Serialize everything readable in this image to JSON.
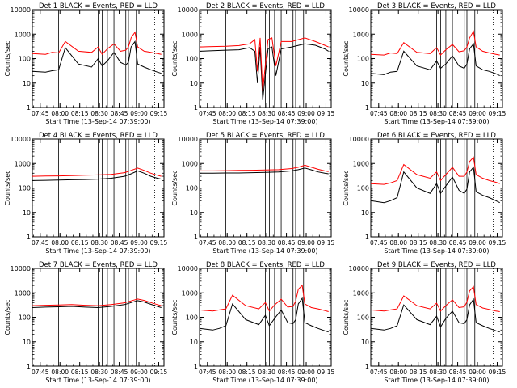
{
  "figure": {
    "start_time_label": "Start Time (13-Sep-14 07:39:00)",
    "ylabel": "Counts/sec",
    "x_tick_labels": [
      "07:45",
      "08:00",
      "08:15",
      "08:30",
      "08:45",
      "09:00",
      "09:15"
    ],
    "y_tick_labels": [
      "1",
      "10",
      "100",
      "1000",
      "10000"
    ],
    "colors": {
      "events": "#000000",
      "lld": "#ff0000",
      "axes": "#000000"
    }
  },
  "chart_data": [
    {
      "type": "line",
      "title": "Det 1  BLACK = Events, RED = LLD",
      "xlabel": "Start Time (13-Sep-14 07:39:00)",
      "ylabel": "Counts/sec",
      "y_scale": "log",
      "ylim": [
        1,
        10000
      ],
      "x_unit": "minutes after 07:39",
      "xlim": [
        0,
        100
      ],
      "grid": false,
      "vertical_markers": [
        20,
        50,
        53,
        57,
        62,
        71,
        73,
        79
      ],
      "dotted_markers": [
        93
      ],
      "series": [
        {
          "name": "Events",
          "color": "#000000",
          "x": [
            0,
            10,
            15,
            20,
            25,
            35,
            45,
            50,
            53,
            57,
            62,
            67,
            71,
            73,
            75,
            78,
            80,
            85,
            90,
            95,
            98
          ],
          "y": [
            30,
            28,
            32,
            35,
            280,
            60,
            45,
            100,
            50,
            80,
            180,
            70,
            55,
            70,
            300,
            500,
            60,
            45,
            35,
            28,
            25
          ]
        },
        {
          "name": "LLD",
          "color": "#ff0000",
          "x": [
            0,
            10,
            15,
            20,
            25,
            35,
            45,
            50,
            53,
            57,
            62,
            67,
            71,
            73,
            75,
            78,
            80,
            85,
            90,
            95,
            98
          ],
          "y": [
            160,
            150,
            180,
            170,
            500,
            200,
            180,
            300,
            150,
            250,
            400,
            200,
            220,
            300,
            700,
            1200,
            300,
            200,
            180,
            160,
            150
          ]
        }
      ]
    },
    {
      "type": "line",
      "title": "Det 2  BLACK = Events, RED = LLD",
      "xlabel": "Start Time (13-Sep-14 07:39:00)",
      "ylabel": "Counts/sec",
      "y_scale": "log",
      "ylim": [
        1,
        10000
      ],
      "x_unit": "minutes after 07:39",
      "xlim": [
        0,
        100
      ],
      "grid": false,
      "vertical_markers": [
        20,
        50,
        53,
        57,
        62,
        71,
        73,
        79
      ],
      "dotted_markers": [
        93
      ],
      "series": [
        {
          "name": "Events",
          "color": "#000000",
          "x": [
            0,
            10,
            20,
            30,
            38,
            42,
            44,
            46,
            48,
            52,
            55,
            58,
            62,
            70,
            80,
            88,
            95,
            98
          ],
          "y": [
            200,
            210,
            220,
            230,
            280,
            200,
            10,
            300,
            2,
            250,
            300,
            20,
            250,
            300,
            400,
            350,
            250,
            200
          ]
        },
        {
          "name": "LLD",
          "color": "#ff0000",
          "x": [
            0,
            10,
            20,
            30,
            38,
            42,
            44,
            46,
            48,
            52,
            55,
            58,
            62,
            70,
            80,
            88,
            95,
            98
          ],
          "y": [
            300,
            310,
            320,
            340,
            400,
            600,
            30,
            700,
            5,
            600,
            700,
            50,
            500,
            500,
            700,
            500,
            350,
            300
          ]
        }
      ]
    },
    {
      "type": "line",
      "title": "Det 3  BLACK = Events, RED = LLD",
      "xlabel": "Start Time (13-Sep-14 07:39:00)",
      "ylabel": "Counts/sec",
      "y_scale": "log",
      "ylim": [
        1,
        10000
      ],
      "x_unit": "minutes after 07:39",
      "xlim": [
        0,
        100
      ],
      "grid": false,
      "vertical_markers": [
        20,
        50,
        53,
        57,
        62,
        71,
        73,
        79
      ],
      "dotted_markers": [
        93
      ],
      "series": [
        {
          "name": "Events",
          "color": "#000000",
          "x": [
            0,
            10,
            15,
            20,
            25,
            35,
            45,
            50,
            53,
            57,
            62,
            67,
            71,
            73,
            75,
            78,
            80,
            85,
            90,
            95,
            98
          ],
          "y": [
            25,
            22,
            28,
            30,
            200,
            50,
            35,
            80,
            40,
            60,
            130,
            50,
            40,
            60,
            250,
            400,
            50,
            35,
            30,
            24,
            20
          ]
        },
        {
          "name": "LLD",
          "color": "#ff0000",
          "x": [
            0,
            10,
            15,
            20,
            25,
            35,
            45,
            50,
            53,
            57,
            62,
            67,
            71,
            73,
            75,
            78,
            80,
            85,
            90,
            95,
            98
          ],
          "y": [
            150,
            140,
            170,
            160,
            450,
            180,
            160,
            280,
            140,
            230,
            380,
            190,
            210,
            300,
            700,
            1300,
            300,
            200,
            170,
            150,
            140
          ]
        }
      ]
    },
    {
      "type": "line",
      "title": "Det 4  BLACK = Events, RED = LLD",
      "xlabel": "Start Time (13-Sep-14 07:39:00)",
      "ylabel": "Counts/sec",
      "y_scale": "log",
      "ylim": [
        1,
        10000
      ],
      "x_unit": "minutes after 07:39",
      "xlim": [
        0,
        100
      ],
      "grid": false,
      "vertical_markers": [
        20,
        50,
        53,
        57,
        62,
        71,
        73,
        79
      ],
      "dotted_markers": [
        93
      ],
      "series": [
        {
          "name": "Events",
          "color": "#000000",
          "x": [
            0,
            10,
            20,
            30,
            40,
            50,
            60,
            70,
            75,
            80,
            85,
            90,
            95,
            98
          ],
          "y": [
            200,
            205,
            210,
            215,
            220,
            230,
            250,
            300,
            380,
            500,
            400,
            300,
            250,
            230
          ]
        },
        {
          "name": "LLD",
          "color": "#ff0000",
          "x": [
            0,
            10,
            20,
            30,
            40,
            50,
            60,
            70,
            75,
            80,
            85,
            90,
            95,
            98
          ],
          "y": [
            300,
            305,
            310,
            320,
            330,
            340,
            360,
            420,
            520,
            650,
            520,
            400,
            330,
            300
          ]
        }
      ]
    },
    {
      "type": "line",
      "title": "Det 5  BLACK = Events, RED = LLD",
      "xlabel": "Start Time (13-Sep-14 07:39:00)",
      "ylabel": "Counts/sec",
      "y_scale": "log",
      "ylim": [
        1,
        10000
      ],
      "x_unit": "minutes after 07:39",
      "xlim": [
        0,
        100
      ],
      "grid": false,
      "vertical_markers": [
        20,
        50,
        53,
        57,
        62,
        71,
        73,
        79
      ],
      "dotted_markers": [
        93
      ],
      "series": [
        {
          "name": "Events",
          "color": "#000000",
          "x": [
            0,
            10,
            20,
            30,
            40,
            50,
            60,
            70,
            75,
            80,
            85,
            90,
            95,
            98
          ],
          "y": [
            400,
            400,
            410,
            410,
            420,
            430,
            450,
            500,
            560,
            650,
            550,
            450,
            400,
            380
          ]
        },
        {
          "name": "LLD",
          "color": "#ff0000",
          "x": [
            0,
            10,
            20,
            30,
            40,
            50,
            60,
            70,
            75,
            80,
            85,
            90,
            95,
            98
          ],
          "y": [
            500,
            500,
            510,
            520,
            530,
            540,
            560,
            620,
            700,
            850,
            700,
            580,
            500,
            470
          ]
        }
      ]
    },
    {
      "type": "line",
      "title": "Det 6  BLACK = Events, RED = LLD",
      "xlabel": "Start Time (13-Sep-14 07:39:00)",
      "ylabel": "Counts/sec",
      "y_scale": "log",
      "ylim": [
        1,
        10000
      ],
      "x_unit": "minutes after 07:39",
      "xlim": [
        0,
        100
      ],
      "grid": false,
      "vertical_markers": [
        20,
        50,
        53,
        57,
        62,
        71,
        73,
        79
      ],
      "dotted_markers": [
        93
      ],
      "series": [
        {
          "name": "Events",
          "color": "#000000",
          "x": [
            0,
            10,
            15,
            20,
            25,
            35,
            45,
            50,
            53,
            57,
            62,
            67,
            71,
            73,
            75,
            78,
            80,
            85,
            90,
            95,
            98
          ],
          "y": [
            30,
            25,
            30,
            40,
            450,
            100,
            60,
            150,
            60,
            120,
            280,
            80,
            60,
            90,
            450,
            700,
            70,
            50,
            40,
            30,
            25
          ]
        },
        {
          "name": "LLD",
          "color": "#ff0000",
          "x": [
            0,
            10,
            15,
            20,
            25,
            35,
            45,
            50,
            53,
            57,
            62,
            67,
            71,
            73,
            75,
            78,
            80,
            85,
            90,
            95,
            98
          ],
          "y": [
            150,
            140,
            160,
            200,
            900,
            350,
            250,
            450,
            200,
            350,
            700,
            300,
            300,
            450,
            1200,
            1800,
            350,
            250,
            200,
            170,
            150
          ]
        }
      ]
    },
    {
      "type": "line",
      "title": "Det 7  BLACK = Events, RED = LLD",
      "xlabel": "Start Time (13-Sep-14 07:39:00)",
      "ylabel": "Counts/sec",
      "y_scale": "log",
      "ylim": [
        1,
        10000
      ],
      "x_unit": "minutes after 07:39",
      "xlim": [
        0,
        100
      ],
      "grid": false,
      "vertical_markers": [
        20,
        50,
        53,
        57,
        62,
        71,
        73,
        79
      ],
      "dotted_markers": [
        93
      ],
      "series": [
        {
          "name": "Events",
          "color": "#000000",
          "x": [
            0,
            10,
            20,
            30,
            40,
            50,
            60,
            70,
            75,
            80,
            85,
            90,
            95,
            98
          ],
          "y": [
            250,
            260,
            270,
            280,
            260,
            250,
            280,
            330,
            400,
            480,
            420,
            340,
            280,
            250
          ]
        },
        {
          "name": "LLD",
          "color": "#ff0000",
          "x": [
            0,
            10,
            20,
            30,
            40,
            50,
            60,
            70,
            75,
            80,
            85,
            90,
            95,
            98
          ],
          "y": [
            300,
            310,
            320,
            330,
            310,
            300,
            330,
            390,
            470,
            560,
            490,
            400,
            330,
            300
          ]
        }
      ]
    },
    {
      "type": "line",
      "title": "Det 8  BLACK = Events, RED = LLD",
      "xlabel": "Start Time (13-Sep-14 07:39:00)",
      "ylabel": "Counts/sec",
      "y_scale": "log",
      "ylim": [
        1,
        10000
      ],
      "x_unit": "minutes after 07:39",
      "xlim": [
        0,
        100
      ],
      "grid": false,
      "vertical_markers": [
        20,
        50,
        53,
        57,
        62,
        71,
        73,
        79
      ],
      "dotted_markers": [
        93
      ],
      "series": [
        {
          "name": "Events",
          "color": "#000000",
          "x": [
            0,
            10,
            15,
            20,
            25,
            35,
            45,
            50,
            53,
            57,
            62,
            67,
            71,
            73,
            75,
            78,
            80,
            85,
            90,
            95,
            98
          ],
          "y": [
            35,
            30,
            35,
            45,
            350,
            80,
            50,
            120,
            45,
            90,
            200,
            60,
            55,
            80,
            350,
            600,
            60,
            45,
            35,
            28,
            25
          ]
        },
        {
          "name": "LLD",
          "color": "#ff0000",
          "x": [
            0,
            10,
            15,
            20,
            25,
            35,
            45,
            50,
            53,
            57,
            62,
            67,
            71,
            73,
            75,
            78,
            80,
            85,
            90,
            95,
            98
          ],
          "y": [
            200,
            180,
            200,
            220,
            800,
            300,
            220,
            400,
            180,
            320,
            550,
            260,
            280,
            450,
            1400,
            2000,
            350,
            250,
            220,
            190,
            170
          ]
        }
      ]
    },
    {
      "type": "line",
      "title": "Det 9  BLACK = Events, RED = LLD",
      "xlabel": "Start Time (13-Sep-14 07:39:00)",
      "ylabel": "Counts/sec",
      "y_scale": "log",
      "ylim": [
        1,
        10000
      ],
      "x_unit": "minutes after 07:39",
      "xlim": [
        0,
        100
      ],
      "grid": false,
      "vertical_markers": [
        20,
        50,
        53,
        57,
        62,
        71,
        73,
        79
      ],
      "dotted_markers": [
        93
      ],
      "series": [
        {
          "name": "Events",
          "color": "#000000",
          "x": [
            0,
            10,
            15,
            20,
            25,
            35,
            45,
            50,
            53,
            57,
            62,
            67,
            71,
            73,
            75,
            78,
            80,
            85,
            90,
            95,
            98
          ],
          "y": [
            35,
            30,
            35,
            45,
            320,
            80,
            50,
            110,
            40,
            90,
            180,
            60,
            55,
            80,
            320,
            550,
            60,
            45,
            35,
            28,
            25
          ]
        },
        {
          "name": "LLD",
          "color": "#ff0000",
          "x": [
            0,
            10,
            15,
            20,
            25,
            35,
            45,
            50,
            53,
            57,
            62,
            67,
            71,
            73,
            75,
            78,
            80,
            85,
            90,
            95,
            98
          ],
          "y": [
            200,
            180,
            200,
            220,
            750,
            300,
            220,
            380,
            180,
            300,
            520,
            250,
            270,
            420,
            1200,
            1800,
            330,
            240,
            210,
            180,
            170
          ]
        }
      ]
    }
  ]
}
